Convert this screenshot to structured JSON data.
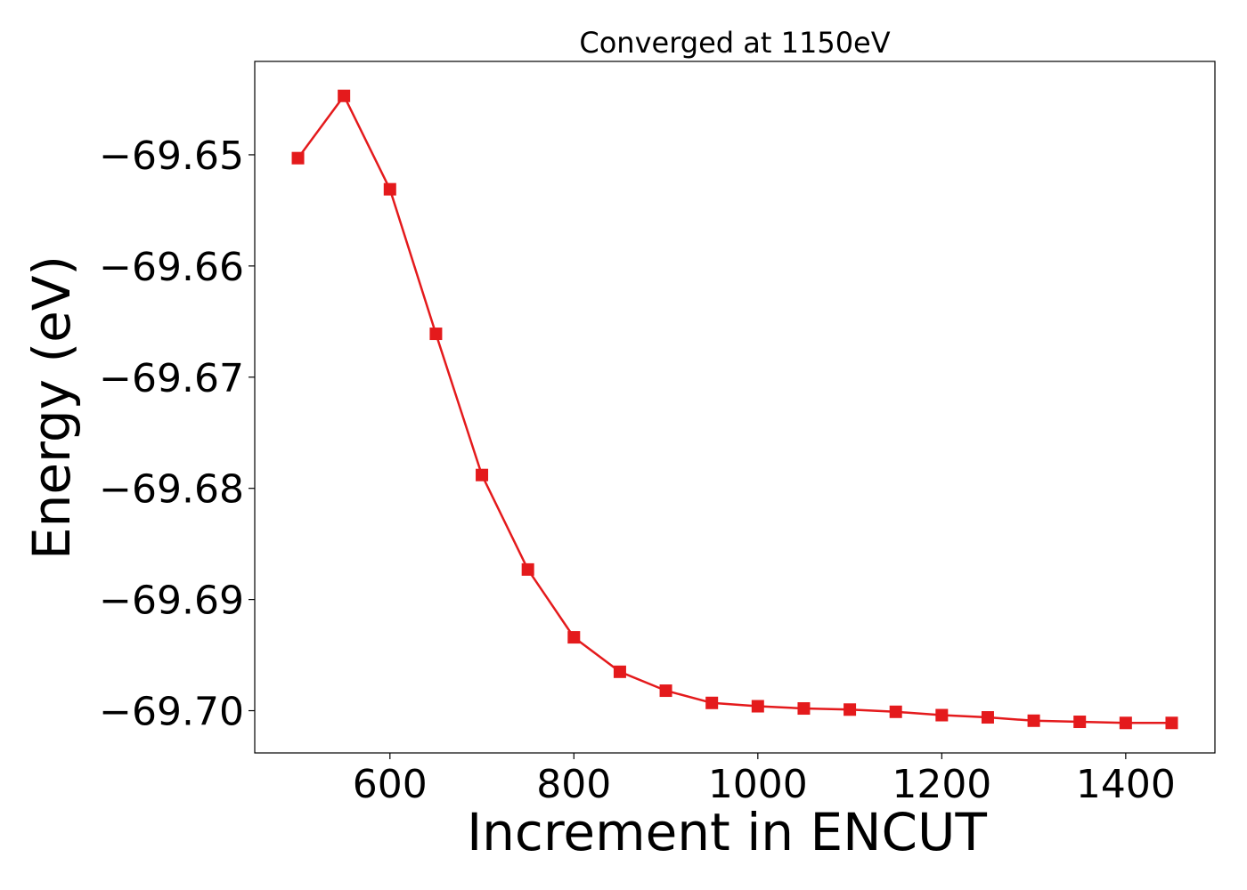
{
  "chart_data": {
    "type": "line",
    "title": "Converged at 1150eV",
    "xlabel": "Increment in ENCUT",
    "ylabel": "Energy (eV)",
    "xlim": [
      453,
      1497
    ],
    "ylim": [
      -69.7038,
      -69.6416
    ],
    "xticks": [
      600,
      800,
      1000,
      1200,
      1400
    ],
    "xtick_labels": [
      "600",
      "800",
      "1000",
      "1200",
      "1400"
    ],
    "yticks": [
      -69.65,
      -69.66,
      -69.67,
      -69.68,
      -69.69,
      -69.7
    ],
    "ytick_labels": [
      "−69.65",
      "−69.66",
      "−69.67",
      "−69.68",
      "−69.69",
      "−69.70"
    ],
    "grid": false,
    "legend": "none",
    "series": [
      {
        "color": "#e41a1c",
        "marker": "square",
        "x": [
          500,
          550,
          600,
          650,
          700,
          750,
          800,
          850,
          900,
          950,
          1000,
          1050,
          1100,
          1150,
          1200,
          1250,
          1300,
          1350,
          1400,
          1450
        ],
        "y": [
          -69.6503,
          -69.6447,
          -69.6531,
          -69.6661,
          -69.6788,
          -69.6873,
          -69.6934,
          -69.6965,
          -69.6982,
          -69.6993,
          -69.6996,
          -69.6998,
          -69.6999,
          -69.7001,
          -69.7004,
          -69.7006,
          -69.7009,
          -69.701,
          -69.7011,
          -69.7011
        ]
      }
    ]
  }
}
